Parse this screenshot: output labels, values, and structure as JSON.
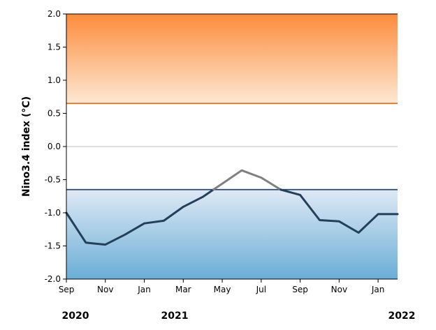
{
  "chart_data": {
    "type": "line",
    "title": "",
    "xlabel": "",
    "ylabel": "Nino3.4 index (°C)",
    "ylim": [
      -2.0,
      2.0
    ],
    "yticks": [
      "2.0",
      "1.5",
      "1.0",
      "0.5",
      "0.0",
      "-0.5",
      "-1.0",
      "-1.5",
      "-2.0"
    ],
    "x": [
      "2020-09",
      "2020-10",
      "2020-11",
      "2020-12",
      "2021-01",
      "2021-02",
      "2021-03",
      "2021-04",
      "2021-05",
      "2021-06",
      "2021-07",
      "2021-08",
      "2021-09",
      "2021-10",
      "2021-11",
      "2021-12",
      "2022-01",
      "2022-02"
    ],
    "xlim": [
      "2020-09",
      "2022-02"
    ],
    "xtick_labels": [
      "Sep",
      "Nov",
      "Jan",
      "Mar",
      "May",
      "Jul",
      "Sep",
      "Nov",
      "Jan"
    ],
    "year_labels": [
      "2020",
      "2021",
      "2022"
    ],
    "series": [
      {
        "values": [
          -1.0,
          -1.45,
          -1.48,
          -1.33,
          -1.16,
          -1.12,
          -0.91,
          -0.76,
          -0.56,
          -0.36,
          -0.47,
          -0.65,
          -0.73,
          -1.11,
          -1.13,
          -1.3,
          -1.02,
          -1.02
        ],
        "colors": {
          "below_threshold": "#243f5a",
          "above_threshold": "#808080"
        }
      }
    ],
    "thresholds": [
      {
        "value": 0.65,
        "color": "#e8691e"
      },
      {
        "value": -0.65,
        "color": "#2b4a6b"
      }
    ],
    "zero_line": {
      "value": 0.0,
      "color": "#cccccc"
    },
    "shaded_bands": [
      {
        "from": 0.65,
        "to": 2.0,
        "color_light": "#fde8d4",
        "color_dark": "#fd8c3c"
      },
      {
        "from": -2.0,
        "to": -0.65,
        "color_light": "#dfe9f5",
        "color_dark": "#6aaed6"
      }
    ],
    "grid": false
  }
}
